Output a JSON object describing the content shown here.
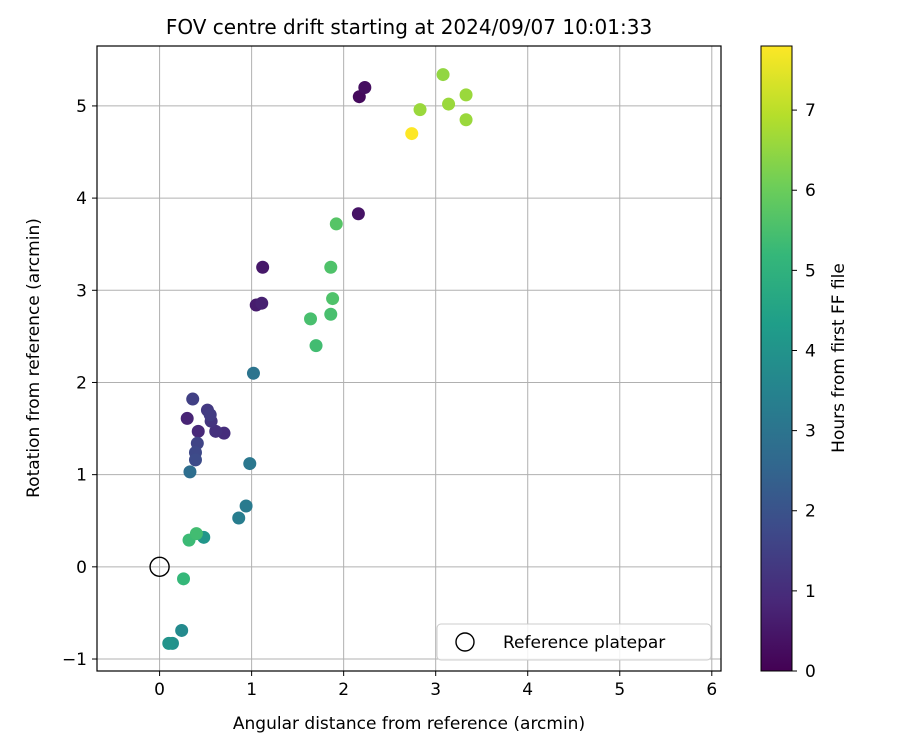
{
  "chart_data": {
    "type": "scatter",
    "title": "FOV centre drift starting at 2024/09/07 10:01:33",
    "xlabel": "Angular distance from reference (arcmin)",
    "ylabel": "Rotation from reference (arcmin)",
    "xlim": [
      -0.68,
      6.1
    ],
    "ylim": [
      -1.13,
      5.65
    ],
    "x_ticks": [
      0,
      1,
      2,
      3,
      4,
      5,
      6
    ],
    "y_ticks": [
      -1,
      0,
      1,
      2,
      3,
      4,
      5
    ],
    "grid": true,
    "colorbar": {
      "label": "Hours from first FF file",
      "colormap": "viridis",
      "range": [
        0,
        7.8
      ],
      "ticks": [
        0,
        1,
        2,
        3,
        4,
        5,
        6,
        7
      ]
    },
    "legend": {
      "location": "lower right",
      "entries": [
        {
          "label": "Reference platepar",
          "marker": "open-circle"
        }
      ]
    },
    "reference_point": {
      "x": 0,
      "y": 0
    },
    "points": [
      {
        "x": 2.17,
        "y": 5.1,
        "hours": 0.2
      },
      {
        "x": 2.23,
        "y": 5.2,
        "hours": 0.3
      },
      {
        "x": 2.16,
        "y": 3.83,
        "hours": 0.4
      },
      {
        "x": 1.12,
        "y": 3.25,
        "hours": 0.5
      },
      {
        "x": 1.05,
        "y": 2.84,
        "hours": 0.6
      },
      {
        "x": 1.11,
        "y": 2.86,
        "hours": 0.7
      },
      {
        "x": 0.3,
        "y": 1.61,
        "hours": 0.8
      },
      {
        "x": 0.42,
        "y": 1.47,
        "hours": 0.9
      },
      {
        "x": 0.7,
        "y": 1.45,
        "hours": 1.0
      },
      {
        "x": 0.61,
        "y": 1.47,
        "hours": 1.1
      },
      {
        "x": 0.56,
        "y": 1.58,
        "hours": 1.2
      },
      {
        "x": 0.52,
        "y": 1.7,
        "hours": 1.3
      },
      {
        "x": 0.55,
        "y": 1.65,
        "hours": 1.4
      },
      {
        "x": 0.36,
        "y": 1.82,
        "hours": 1.5
      },
      {
        "x": 0.41,
        "y": 1.34,
        "hours": 1.6
      },
      {
        "x": 0.39,
        "y": 1.24,
        "hours": 1.7
      },
      {
        "x": 0.39,
        "y": 1.16,
        "hours": 1.8
      },
      {
        "x": 0.33,
        "y": 1.03,
        "hours": 2.8
      },
      {
        "x": 1.02,
        "y": 2.1,
        "hours": 3.0
      },
      {
        "x": 0.98,
        "y": 1.12,
        "hours": 3.1
      },
      {
        "x": 0.94,
        "y": 0.66,
        "hours": 3.2
      },
      {
        "x": 0.86,
        "y": 0.53,
        "hours": 3.3
      },
      {
        "x": 0.24,
        "y": -0.69,
        "hours": 3.7
      },
      {
        "x": 0.14,
        "y": -0.83,
        "hours": 3.9
      },
      {
        "x": 0.1,
        "y": -0.83,
        "hours": 4.0
      },
      {
        "x": 0.48,
        "y": 0.32,
        "hours": 4.1
      },
      {
        "x": 0.26,
        "y": -0.13,
        "hours": 5.2
      },
      {
        "x": 0.32,
        "y": 0.29,
        "hours": 5.3
      },
      {
        "x": 0.4,
        "y": 0.36,
        "hours": 5.4
      },
      {
        "x": 1.7,
        "y": 2.4,
        "hours": 5.4
      },
      {
        "x": 1.64,
        "y": 2.69,
        "hours": 5.5
      },
      {
        "x": 1.86,
        "y": 2.74,
        "hours": 5.5
      },
      {
        "x": 1.88,
        "y": 2.91,
        "hours": 5.6
      },
      {
        "x": 1.86,
        "y": 3.25,
        "hours": 5.6
      },
      {
        "x": 1.92,
        "y": 3.72,
        "hours": 5.7
      },
      {
        "x": 2.83,
        "y": 4.96,
        "hours": 6.6
      },
      {
        "x": 3.08,
        "y": 5.34,
        "hours": 6.5
      },
      {
        "x": 3.14,
        "y": 5.02,
        "hours": 6.6
      },
      {
        "x": 3.33,
        "y": 5.12,
        "hours": 6.6
      },
      {
        "x": 3.33,
        "y": 4.85,
        "hours": 6.6
      },
      {
        "x": 2.74,
        "y": 4.7,
        "hours": 7.8
      }
    ]
  }
}
